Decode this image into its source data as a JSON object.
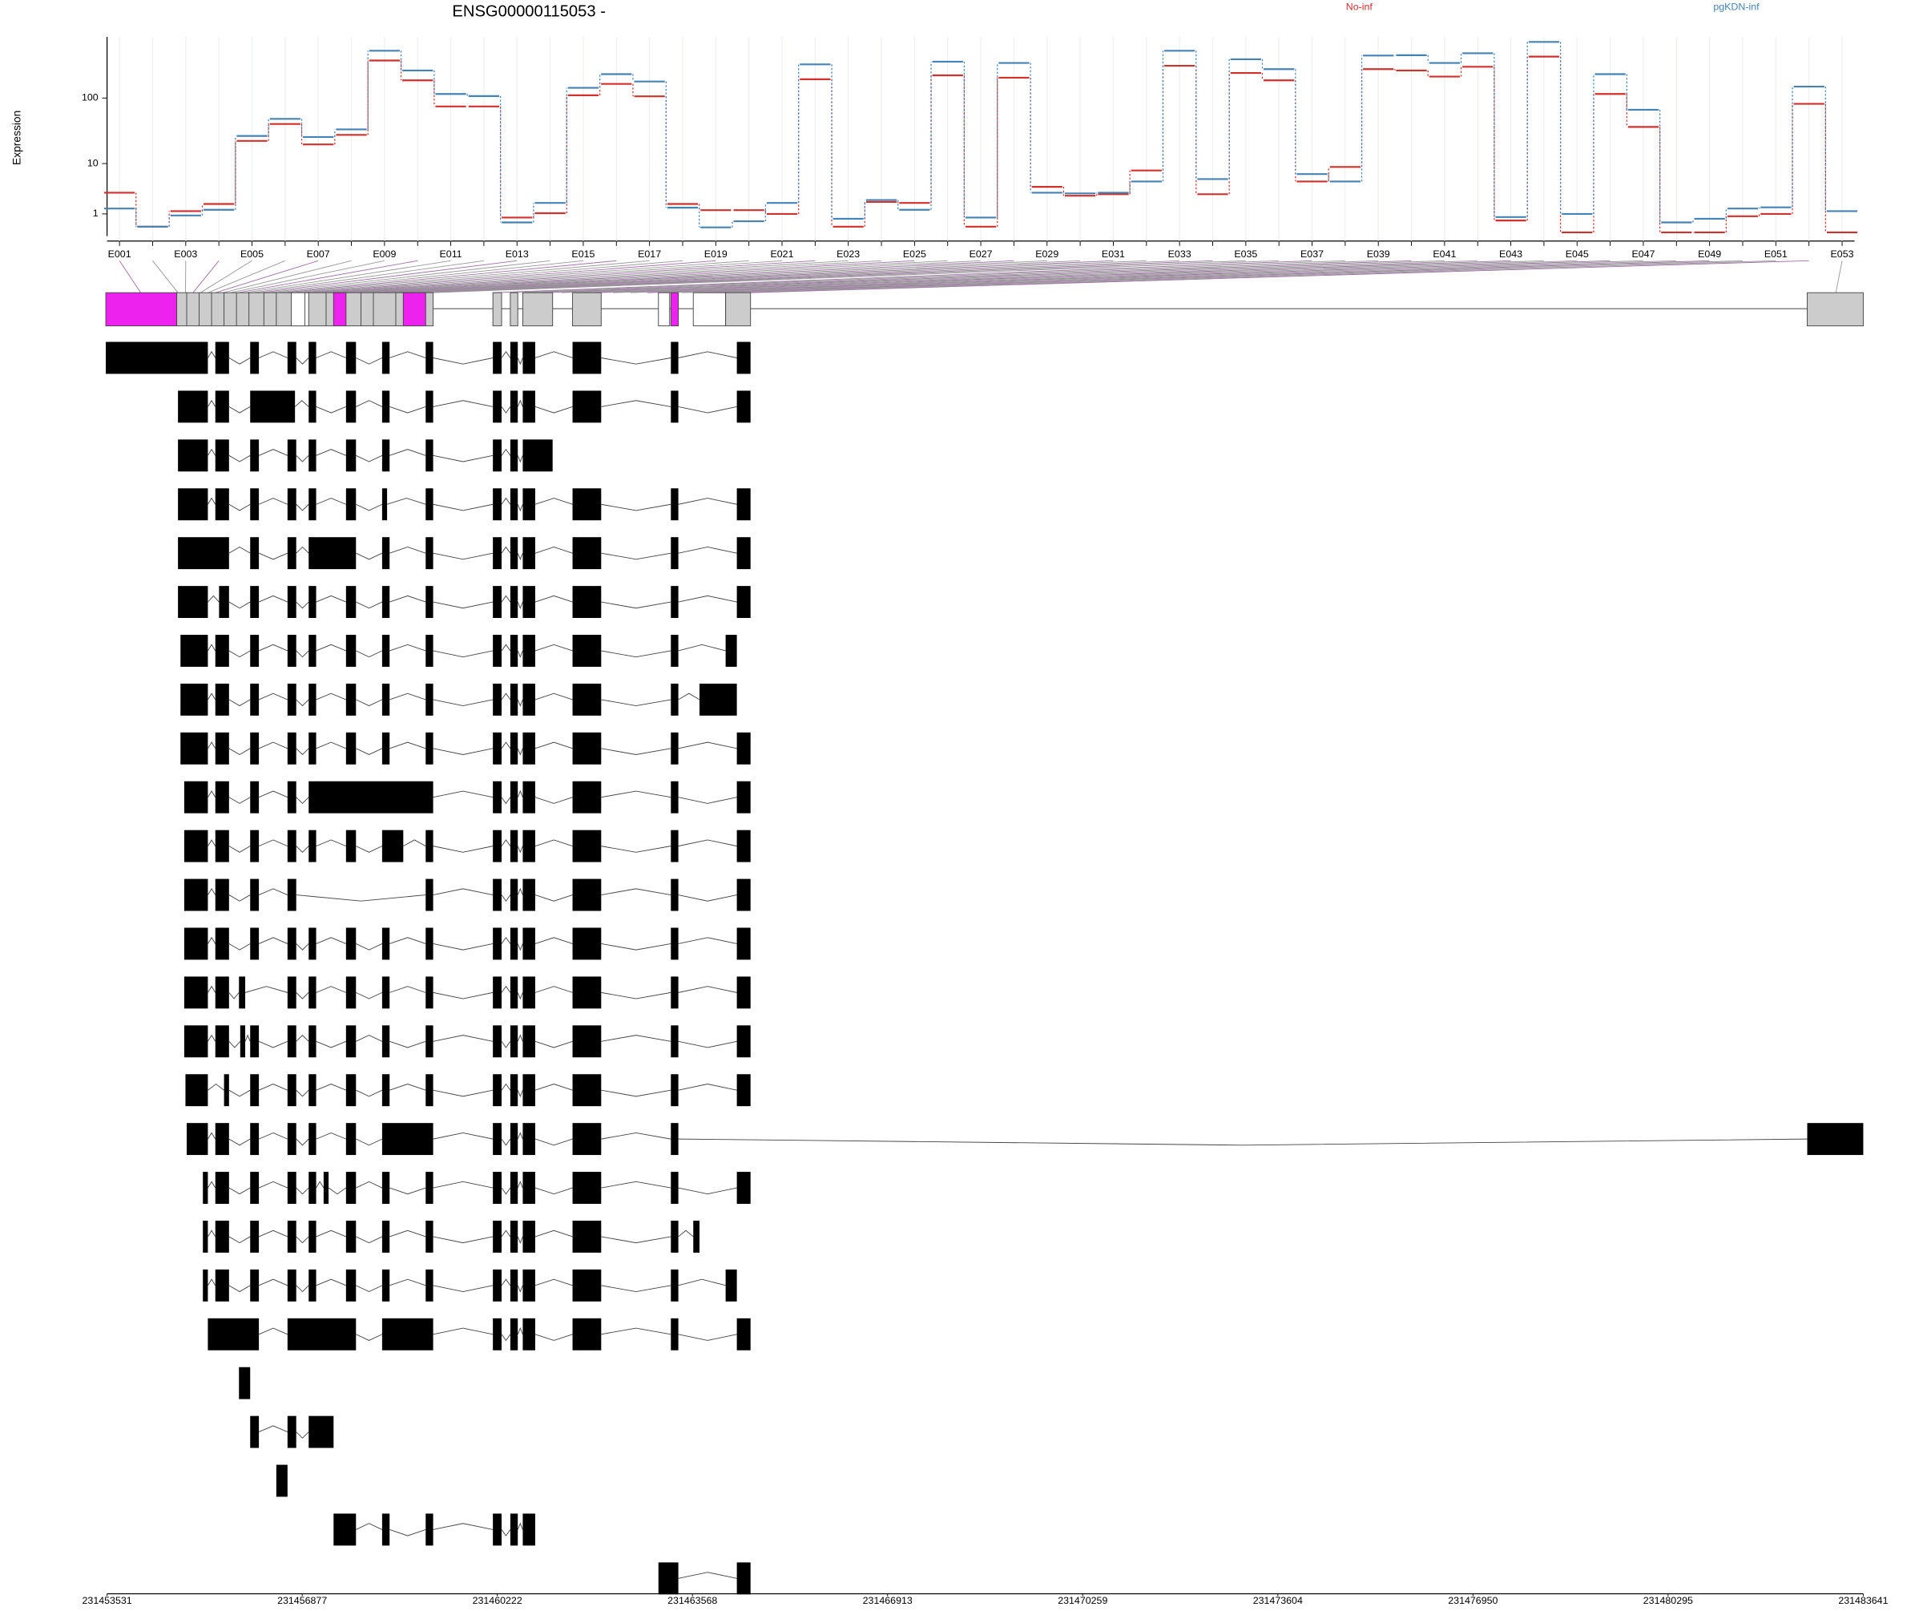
{
  "chart_data": {
    "type": "line",
    "title": "ENSG00000115053 -",
    "y_label": "Expression",
    "yscale": "log1p",
    "categories": [
      "E001",
      null,
      "E003",
      null,
      "E005",
      null,
      "E007",
      null,
      "E009",
      null,
      "E011",
      null,
      "E013",
      null,
      "E015",
      null,
      "E017",
      null,
      "E019",
      null,
      "E021",
      null,
      "E023",
      null,
      "E025",
      null,
      "E027",
      null,
      "E029",
      null,
      "E031",
      null,
      "E033",
      null,
      "E035",
      null,
      "E037",
      null,
      "E039",
      null,
      "E041",
      null,
      "E043",
      null,
      "E045",
      null,
      "E047",
      null,
      "E049",
      null,
      "E051",
      null,
      "E053"
    ],
    "series": [
      {
        "name": "No-inf",
        "color": "#d0312d",
        "values": [
          3.1,
          0.3,
          1.2,
          1.8,
          22.7,
          41,
          20,
          28,
          359,
          183,
          75,
          75,
          0.77,
          1.05,
          110,
          162,
          106,
          1.8,
          1.27,
          1.27,
          1.0,
          190,
          0.3,
          2.0,
          1.9,
          217,
          0.3,
          200,
          4.0,
          2.7,
          2.9,
          7.7,
          300,
          2.9,
          235,
          183,
          5.0,
          8.8,
          268,
          256,
          208,
          290,
          0.6,
          410,
          0.07,
          115,
          37,
          0.07,
          0.07,
          0.85,
          1.0,
          82,
          0.07
        ]
      },
      {
        "name": "pgKDN-inf",
        "color": "#4682b4",
        "values": [
          1.4,
          0.3,
          0.9,
          1.3,
          27,
          49,
          26,
          34,
          500,
          256,
          115,
          107,
          0.5,
          1.9,
          142,
          226,
          176,
          1.47,
          0.27,
          0.56,
          1.9,
          315,
          0.7,
          2.2,
          1.3,
          345,
          0.77,
          330,
          3.1,
          3.0,
          3.1,
          5.0,
          500,
          5.5,
          375,
          268,
          6.7,
          5.0,
          425,
          430,
          330,
          460,
          0.8,
          675,
          1.0,
          226,
          67,
          0.5,
          0.7,
          1.4,
          1.5,
          148,
          1.2
        ]
      }
    ],
    "ylim": [
      0,
      800
    ],
    "yticks": [
      1,
      10,
      100
    ],
    "grid": true
  },
  "genome_axis": {
    "lim": [
      231453531,
      231483641
    ],
    "ticks": [
      231453531,
      231456877,
      231460222,
      231463568,
      231466913,
      231470259,
      231473604,
      231476950,
      231480295,
      231483641
    ]
  }
}
